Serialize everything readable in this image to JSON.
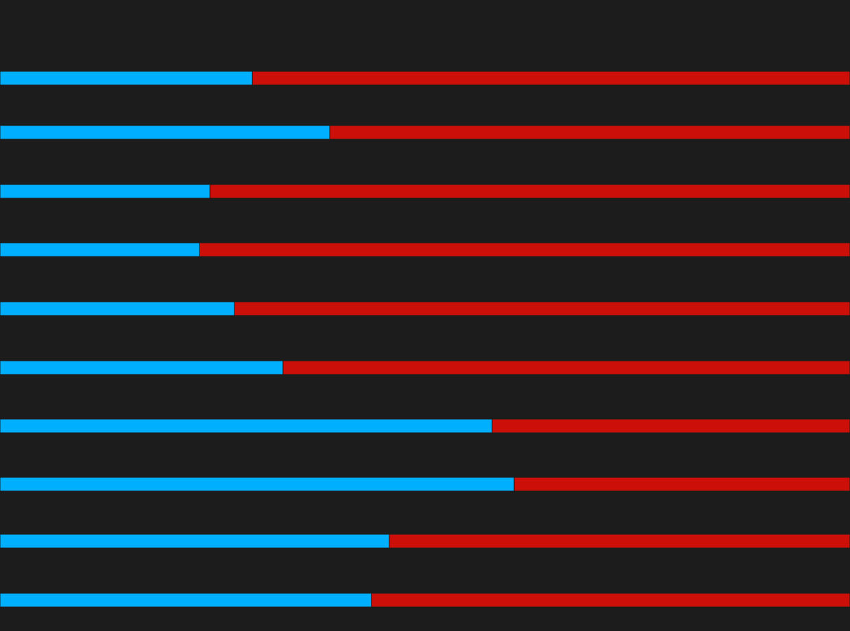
{
  "colors": {
    "background": "#1c1c1c",
    "blue": "#00b0ff",
    "red": "#cc0f08",
    "divider": "#1c1c1c"
  },
  "chart_data": {
    "type": "bar",
    "stacked": true,
    "orientation": "horizontal",
    "normalized": true,
    "categories": [
      "",
      "",
      "",
      "",
      "",
      "",
      "",
      "",
      "",
      ""
    ],
    "series": [
      {
        "values": [
          0.297,
          0.388,
          0.247,
          0.235,
          0.276,
          0.333,
          0.579,
          0.605,
          0.458,
          0.437
        ]
      },
      {
        "values": [
          0.703,
          0.612,
          0.753,
          0.765,
          0.724,
          0.667,
          0.421,
          0.395,
          0.542,
          0.563
        ]
      }
    ],
    "grid": false,
    "legend": "none"
  }
}
